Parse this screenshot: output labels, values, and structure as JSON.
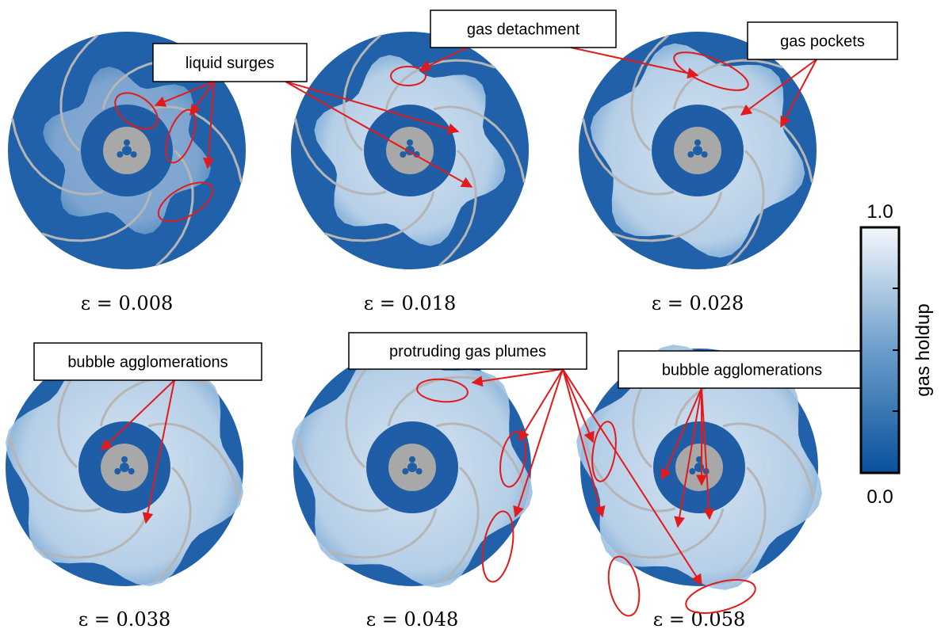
{
  "panels": [
    {
      "caption": "ε = 0.008"
    },
    {
      "caption": "ε = 0.018"
    },
    {
      "caption": "ε = 0.028"
    },
    {
      "caption": "ε = 0.038"
    },
    {
      "caption": "ε = 0.048"
    },
    {
      "caption": "ε = 0.058"
    }
  ],
  "annotations": [
    {
      "label": "liquid surges"
    },
    {
      "label": "gas detachment"
    },
    {
      "label": "gas pockets"
    },
    {
      "label": "bubble agglomerations"
    },
    {
      "label": "protruding gas plumes"
    },
    {
      "label": "bubble agglomerations"
    }
  ],
  "colorbar": {
    "label": "gas holdup",
    "max": "1.0",
    "min": "0.0"
  }
}
